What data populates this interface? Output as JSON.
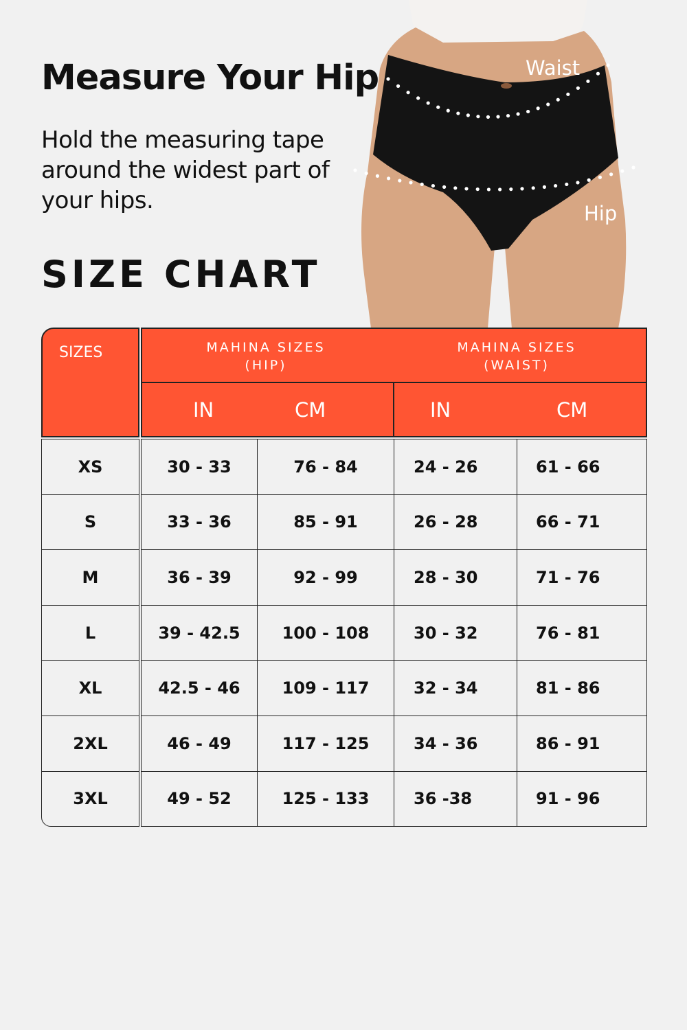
{
  "heading": "Measure Your Hip",
  "description": "Hold the measuring tape around the widest part of your hips.",
  "section_title": "SIZE CHART",
  "photo": {
    "waist_label": "Waist",
    "hip_label": "Hip"
  },
  "colors": {
    "header": "#ff5533",
    "background": "#f1f1f1",
    "border": "#222222"
  },
  "table": {
    "sizes_header": "SIZES",
    "hip_group": "MAHINA SIZES (HIP)",
    "waist_group": "MAHINA SIZES (WAIST)",
    "units": [
      "IN",
      "CM",
      "IN",
      "CM"
    ],
    "rows": [
      [
        "XS",
        "30 - 33",
        "76 - 84",
        "24 - 26",
        "61 - 66"
      ],
      [
        "S",
        "33 - 36",
        "85 - 91",
        "26 - 28",
        "66 - 71"
      ],
      [
        "M",
        "36 - 39",
        "92 - 99",
        "28 - 30",
        "71 - 76"
      ],
      [
        "L",
        "39 - 42.5",
        "100 - 108",
        "30 - 32",
        "76 - 81"
      ],
      [
        "XL",
        "42.5 - 46",
        "109 - 117",
        "32 - 34",
        "81 - 86"
      ],
      [
        "2XL",
        "46 - 49",
        "117 - 125",
        "34 - 36",
        "86 - 91"
      ],
      [
        "3XL",
        "49 - 52",
        "125 - 133",
        "36 -38",
        "91 - 96"
      ]
    ]
  }
}
